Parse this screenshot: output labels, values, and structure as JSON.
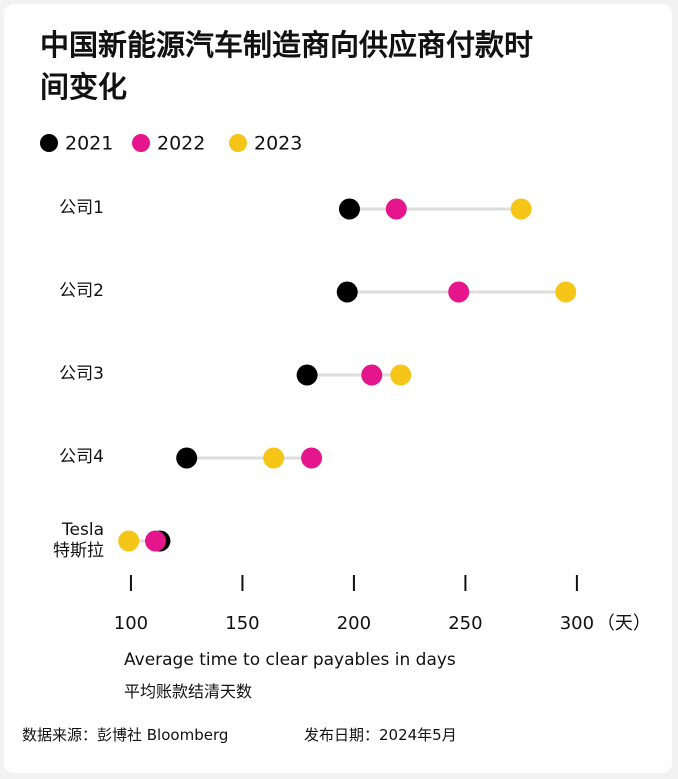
{
  "chart_data": {
    "type": "dot",
    "title": "中国新能源汽车制造商向供应商付款时间变化",
    "categories": [
      "公司1",
      "公司2",
      "公司3",
      "公司4",
      "Tesla\n特斯拉"
    ],
    "series": [
      {
        "name": "2021",
        "color": "#000000",
        "values": [
          198,
          197,
          179,
          125,
          113
        ]
      },
      {
        "name": "2022",
        "color": "#e5168c",
        "values": [
          219,
          247,
          208,
          181,
          111
        ]
      },
      {
        "name": "2023",
        "color": "#f5c518",
        "values": [
          275,
          295,
          221,
          164,
          99
        ]
      }
    ],
    "xlim": [
      85,
      310
    ],
    "xticks": [
      100,
      150,
      200,
      250,
      300
    ],
    "x_unit": "（天）",
    "xlabel": "Average time to clear payables in days",
    "xlabel_zh": "平均账款结清天数",
    "source": "数据来源：彭博社 Bloomberg",
    "date": "发布日期：2024年5月",
    "connector_color": "#dddddd"
  }
}
